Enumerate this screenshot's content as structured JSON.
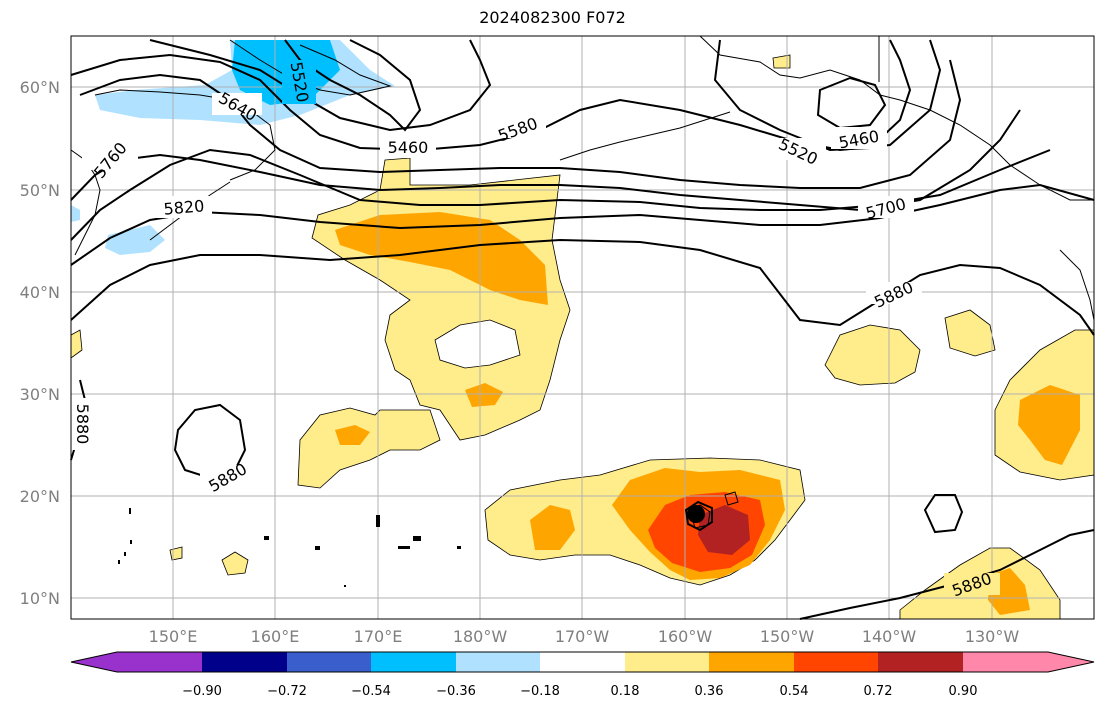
{
  "title": "2024082300 F072",
  "lat_ticks": [
    "60°N",
    "50°N",
    "40°N",
    "30°N",
    "20°N",
    "10°N"
  ],
  "lon_ticks": [
    "150°E",
    "160°E",
    "170°E",
    "180°W",
    "170°W",
    "160°W",
    "150°W",
    "140°W",
    "130°W"
  ],
  "contour_labels": [
    "5640",
    "5520",
    "5460",
    "5580",
    "5460",
    "5520",
    "5760",
    "5820",
    "5700",
    "5880",
    "5880",
    "5880",
    "5880"
  ],
  "colorbar": {
    "ticks": [
      "−0.90",
      "−0.72",
      "−0.54",
      "−0.36",
      "−0.18",
      "0.18",
      "0.36",
      "0.54",
      "0.72",
      "0.90"
    ],
    "colors": [
      "#9932cc",
      "#00008b",
      "#3a5fcd",
      "#00bfff",
      "#b0e2ff",
      "#ffffff",
      "#ffec8b",
      "#ffa500",
      "#ff4500",
      "#b22222",
      "#ff88aa"
    ]
  }
}
